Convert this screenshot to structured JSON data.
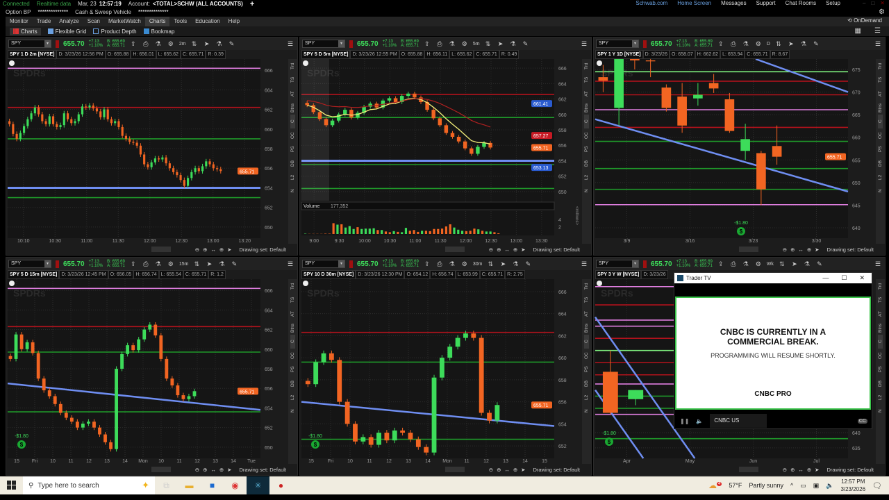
{
  "status": {
    "connected": "Connected",
    "realtime": "Realtime data",
    "date": "Mar, 23",
    "time": "12:57:19",
    "account_label": "Account:",
    "account": "<TOTAL>SCHW (ALL ACCOUNTS)",
    "plus": "+"
  },
  "toplinks": [
    "Schwab.com",
    "Home Screen",
    "Messages",
    "Support",
    "Chat Rooms",
    "Setup"
  ],
  "row1": {
    "option_bp": "Option BP",
    "option_bp_value": "**************",
    "cash_label": "Cash & Sweep Vehicle",
    "cash_value": "**************"
  },
  "menu": {
    "items": [
      "Monitor",
      "Trade",
      "Analyze",
      "Scan",
      "MarketWatch",
      "Charts",
      "Tools",
      "Education",
      "Help"
    ],
    "active": "Charts",
    "ondemand": "OnDemand"
  },
  "subtabs": [
    "Charts",
    "Flexible Grid",
    "Product Depth",
    "Bookmap"
  ],
  "colors": {
    "up": "#3ddc5a",
    "down": "#f26522",
    "magenta": "#e07ee0",
    "red": "#b3121c",
    "green": "#1f9a2a",
    "blue": "#6f8ef2",
    "lightgreen": "#7ef07e",
    "bubble": "#f26522"
  },
  "side_labels": [
    "Trd",
    "TS",
    "AT",
    "Btns",
    "C",
    "OC",
    "PS",
    "DB",
    "L2",
    "N"
  ],
  "drawing_set": "Drawing set: Default",
  "panels": [
    {
      "symbol": "SPY",
      "price": "655.70",
      "change": "+7.13",
      "pct": "+1.10%",
      "bid": "B: 655.69",
      "ask": "A: 655.71",
      "agg": "2m",
      "header": [
        "SPY 1 D 2m [NYSE]",
        "D: 3/23/26 12:56 PM",
        "O: 655.88",
        "H: 656.01",
        "L: 655.62",
        "C: 655.71",
        "R: 0.39"
      ],
      "chart": {
        "type": "candlestick",
        "ylim": [
          649,
          667
        ],
        "yticks": [
          "650",
          "652",
          "654",
          "656",
          "658",
          "660",
          "662",
          "664",
          "666"
        ],
        "xticks": [
          "10:10",
          "10:30",
          "11:00",
          "11:30",
          "12:00",
          "12:30",
          "13:00",
          "13:20"
        ],
        "levels": [
          {
            "price": 666.2,
            "color": "magenta"
          },
          {
            "price": 662.2,
            "color": "red"
          },
          {
            "price": 659,
            "color": "green"
          },
          {
            "price": 654,
            "color": "blue"
          },
          {
            "price": 653,
            "color": "green"
          }
        ],
        "closes": [
          660.5,
          659.5,
          659,
          659.6,
          660.3,
          661,
          661.6,
          662.2,
          661.5,
          660.8,
          660.5,
          661.3,
          660.5,
          660.2,
          660.4,
          661.6,
          661,
          660.6,
          660.8,
          661.5,
          662.3,
          662.2,
          662.4,
          662.1,
          661.8,
          661.2,
          662,
          661,
          660.6,
          660.8,
          660.2,
          659.3,
          659,
          658.7,
          658.6,
          658.3,
          657.4,
          656.4,
          656.1,
          656.6,
          657,
          656.9,
          657.1,
          656.5,
          656,
          655.6,
          655.3,
          654.8,
          654.2,
          655,
          655.6,
          656,
          655.7,
          656.2,
          656.7,
          656.4,
          656,
          655.9,
          655.71
        ],
        "last": "655.71"
      }
    },
    {
      "symbol": "SPY",
      "price": "655.70",
      "change": "+7.13",
      "pct": "+1.10%",
      "bid": "B: 655.69",
      "ask": "A: 655.71",
      "agg": "5m",
      "header": [
        "SPY 5 D 5m [NYSE]",
        "D: 3/23/26 12:55 PM",
        "O: 655.88",
        "H: 656.11",
        "L: 655.62",
        "C: 655.71",
        "R: 0.49"
      ],
      "chart": {
        "type": "candlestick",
        "ylim": [
          649,
          667
        ],
        "yticks": [
          "650",
          "652",
          "654",
          "656",
          "658",
          "660",
          "662",
          "664",
          "666"
        ],
        "xticks": [
          "9:00",
          "9:30",
          "10:00",
          "10:30",
          "11:00",
          "11:30",
          "12:00",
          "12:30",
          "13:00",
          "13:30"
        ],
        "levels": [
          {
            "price": 662.6,
            "color": "red"
          },
          {
            "price": 659.6,
            "color": "green"
          },
          {
            "price": 654,
            "color": "blue"
          },
          {
            "price": 653.5,
            "color": "green"
          },
          {
            "price": 650.4,
            "color": "green"
          }
        ],
        "closes": [
          661.2,
          660.3,
          659.4,
          658.6,
          659.2,
          660,
          660.6,
          659.6,
          660.2,
          661,
          661.4,
          660.9,
          661.8,
          662.1,
          661.6,
          662.4,
          662.7,
          662.2,
          661.6,
          660.6,
          659.5,
          658.6,
          657.6,
          657.1,
          656.5,
          655.6,
          654.9,
          655.8,
          656.3,
          655.71
        ],
        "bubbles": [
          {
            "value": "661.41",
            "price": 661.41,
            "color": "#2a5bd0"
          },
          {
            "value": "657.27",
            "price": 657.27,
            "color": "#c81a24"
          },
          {
            "value": "655.71",
            "price": 655.71,
            "color": "#f26522"
          },
          {
            "value": "653.13",
            "price": 653.13,
            "color": "#2a5bd0"
          }
        ],
        "volume": {
          "label": "Volume",
          "value": "177,352",
          "unit": "<millions>",
          "yticks": [
            "2",
            "4"
          ],
          "ymax": 5,
          "values": [
            0.1,
            0.05,
            0.05,
            0.05,
            0.05,
            0.1,
            0.1,
            3.0,
            2.6,
            2.7,
            1.8,
            2.2,
            1.4,
            1.9,
            1.4,
            1.5,
            1.5,
            1.6,
            1.1,
            1.1,
            0.7,
            0.5,
            0.8,
            0.6,
            0.5,
            1.7,
            0.9,
            1.1,
            0.6,
            0.9,
            0.9,
            0.8,
            1.4,
            1.4,
            1.5,
            2.1,
            2.7,
            1.8,
            1.2,
            0.9,
            0.8,
            0.9,
            1.5,
            1.3,
            0.9,
            0.7,
            0.7,
            0.5,
            0.2
          ],
          "up": [
            1,
            0,
            0,
            0,
            0,
            0,
            0,
            0,
            1,
            0,
            1,
            1,
            1,
            0,
            1,
            1,
            1,
            1,
            0,
            1,
            0,
            0,
            1,
            0,
            1,
            1,
            0,
            0,
            0,
            1,
            0,
            0,
            0,
            0,
            0,
            0,
            0,
            1,
            1,
            1,
            0,
            0,
            0,
            1,
            0,
            1,
            1,
            0,
            0
          ]
        }
      }
    },
    {
      "symbol": "SPY",
      "price": "655.70",
      "change": "+7.13",
      "pct": "+1.10%",
      "bid": "B: 655.69",
      "ask": "A: 655.71",
      "agg": "D",
      "header": [
        "SPY 1 Y 1D [NYSE]",
        "D: 3/23/26",
        "O: 658.07",
        "H: 662.62",
        "L: 653.94",
        "C: 655.71",
        "R: 8.67"
      ],
      "chart": {
        "type": "candlestick",
        "ylim": [
          638,
          677
        ],
        "yticks": [
          "640",
          "645",
          "650",
          "655",
          "660",
          "665",
          "670",
          "675"
        ],
        "xticks": [
          "3/9",
          "3/16",
          "3/23",
          "3/30"
        ],
        "levels": [
          {
            "price": 674.5,
            "color": "lightgreen"
          },
          {
            "price": 672.4,
            "color": "red"
          },
          {
            "price": 669.4,
            "color": "red"
          },
          {
            "price": 666.1,
            "color": "magenta"
          },
          {
            "price": 662.2,
            "color": "red"
          },
          {
            "price": 659.1,
            "color": "green"
          },
          {
            "price": 653.1,
            "color": "green"
          },
          {
            "price": 648.5,
            "color": "green"
          },
          {
            "price": 645.1,
            "color": "magenta"
          }
        ],
        "trends": [
          {
            "from": 690,
            "to": 670
          },
          {
            "from": 664,
            "to": 648
          }
        ],
        "ohlc": [
          [
            673.3,
            676,
            670,
            672.5
          ],
          [
            666.5,
            680,
            662.6,
            680
          ],
          [
            678,
            679,
            675,
            677
          ],
          [
            677,
            679,
            673.3,
            676.8
          ],
          [
            671,
            671.7,
            665.7,
            666.5
          ],
          [
            669,
            672,
            661,
            662.6
          ],
          [
            668.6,
            672,
            667,
            669.4
          ],
          [
            672,
            674,
            669.8,
            670.8
          ],
          [
            668.4,
            669.8,
            661,
            661.4
          ],
          [
            657,
            663,
            655,
            659.6
          ],
          [
            656.5,
            657,
            645,
            648.5
          ],
          [
            658.07,
            662.62,
            653.94,
            655.71
          ]
        ],
        "dividend": "-$1.80",
        "last": "655.71"
      }
    },
    {
      "symbol": "SPY",
      "price": "655.70",
      "change": "+7.13",
      "pct": "+1.10%",
      "bid": "B: 655.69",
      "ask": "A: 655.71",
      "agg": "15m",
      "header": [
        "SPY 5 D 15m [NYSE]",
        "D: 3/23/26 12:45 PM",
        "O: 656.05",
        "H: 656.74",
        "L: 655.54",
        "C: 655.71",
        "R: 1.2"
      ],
      "chart": {
        "type": "candlestick",
        "ylim": [
          649,
          667
        ],
        "yticks": [
          "650",
          "652",
          "654",
          "656",
          "658",
          "660",
          "662",
          "664",
          "666"
        ],
        "xticks": [
          "15",
          "Fri",
          "10",
          "11",
          "12",
          "13",
          "14",
          "Mon",
          "10",
          "11",
          "12",
          "13",
          "14",
          "Tue"
        ],
        "levels": [
          {
            "price": 666.2,
            "color": "magenta"
          },
          {
            "price": 662.3,
            "color": "red"
          },
          {
            "price": 659.7,
            "color": "green"
          },
          {
            "price": 653.6,
            "color": "green"
          }
        ],
        "trends": [
          {
            "from": 656.5,
            "to": 653.8
          }
        ],
        "closes": [
          659,
          661.5,
          660,
          660.7,
          659.6,
          657,
          655.8,
          655.2,
          654.4,
          653.5,
          653,
          652.6,
          652,
          652.4,
          652.6,
          652,
          651.3,
          650.5,
          649.8,
          658,
          659.5,
          660.4,
          659.9,
          661,
          662,
          662.5,
          661.4,
          659,
          657,
          656.3,
          655.3,
          654.9,
          655.2,
          655.71
        ],
        "dividend": "-$1.80",
        "last": "655.71"
      }
    },
    {
      "symbol": "SPY",
      "price": "655.70",
      "change": "+7.13",
      "pct": "+1.10%",
      "bid": "B: 655.69",
      "ask": "A: 655.71",
      "agg": "30m",
      "header": [
        "SPY 10 D 30m [NYSE]",
        "D: 3/23/26 12:30 PM",
        "O: 654.12",
        "H: 656.74",
        "L: 653.99",
        "C: 655.71",
        "R: 2.75"
      ],
      "chart": {
        "type": "candlestick",
        "ylim": [
          651,
          667
        ],
        "yticks": [
          "652",
          "654",
          "656",
          "658",
          "660",
          "662",
          "664",
          "666"
        ],
        "xticks": [
          "15",
          "Fri",
          "10",
          "11",
          "12",
          "13",
          "14",
          "Mon",
          "11",
          "12",
          "13",
          "14",
          "15"
        ],
        "levels": [
          {
            "price": 662.3,
            "color": "red"
          },
          {
            "price": 659.6,
            "color": "green"
          },
          {
            "price": 652.6,
            "color": "green"
          }
        ],
        "trends": [
          {
            "from": 656,
            "to": 653.8
          }
        ],
        "closes": [
          657.6,
          659.6,
          660.4,
          659.8,
          656,
          654,
          652.4,
          652.8,
          652.1,
          653.2,
          652.5,
          653.4,
          653.2,
          652.6,
          651.9,
          651.4,
          658.2,
          660,
          661,
          661.8,
          662.2,
          661.8,
          655,
          654.3,
          655.71
        ],
        "dividend": "-$1.80",
        "last": "655.71"
      }
    },
    {
      "symbol": "SPY",
      "price": "655.70",
      "change": "+7.13",
      "pct": "+1.10%",
      "bid": "B: 655.69",
      "ask": "A: 655.71",
      "agg": "Wk",
      "header": [
        "SPY 3 Y W [NYSE]",
        "D: 3/23/26"
      ],
      "chart": {
        "type": "candlestick",
        "ylim": [
          632,
          690
        ],
        "yticks": [
          "635",
          "640"
        ],
        "xticks": [
          "Apr",
          "May",
          "Jun",
          "Jul"
        ],
        "levels": [
          {
            "price": 688,
            "color": "magenta"
          },
          {
            "price": 682,
            "color": "red"
          },
          {
            "price": 677,
            "color": "magenta"
          },
          {
            "price": 675,
            "color": "magenta"
          },
          {
            "price": 671,
            "color": "red"
          },
          {
            "price": 667,
            "color": "lightgreen"
          },
          {
            "price": 663,
            "color": "red"
          },
          {
            "price": 659,
            "color": "red"
          },
          {
            "price": 656,
            "color": "magenta"
          },
          {
            "price": 652,
            "color": "green"
          },
          {
            "price": 648,
            "color": "green"
          },
          {
            "price": 646,
            "color": "magenta"
          },
          {
            "price": 638,
            "color": "green"
          }
        ],
        "trends": [
          {
            "from": 678,
            "to": 560
          },
          {
            "from": 654,
            "to": 536
          }
        ],
        "ohlc": [
          [
            660,
            667,
            646,
            646.5
          ],
          [
            651,
            654,
            649,
            654
          ]
        ],
        "dividend": "-$1.80"
      }
    }
  ],
  "trader_tv": {
    "title": "Trader TV",
    "headline1": "CNBC IS CURRENTLY IN A",
    "headline2": "COMMERCIAL BREAK.",
    "sub": "PROGRAMMING WILL RESUME SHORTLY.",
    "logo": "CNBC PRO",
    "channel": "CNBC US",
    "cc": "CC"
  },
  "taskbar": {
    "search_placeholder": "Type here to search",
    "weather_temp": "57°F",
    "weather_desc": "Partly sunny",
    "weather_badge": "4",
    "time": "12:57 PM",
    "date": "3/23/2026"
  }
}
